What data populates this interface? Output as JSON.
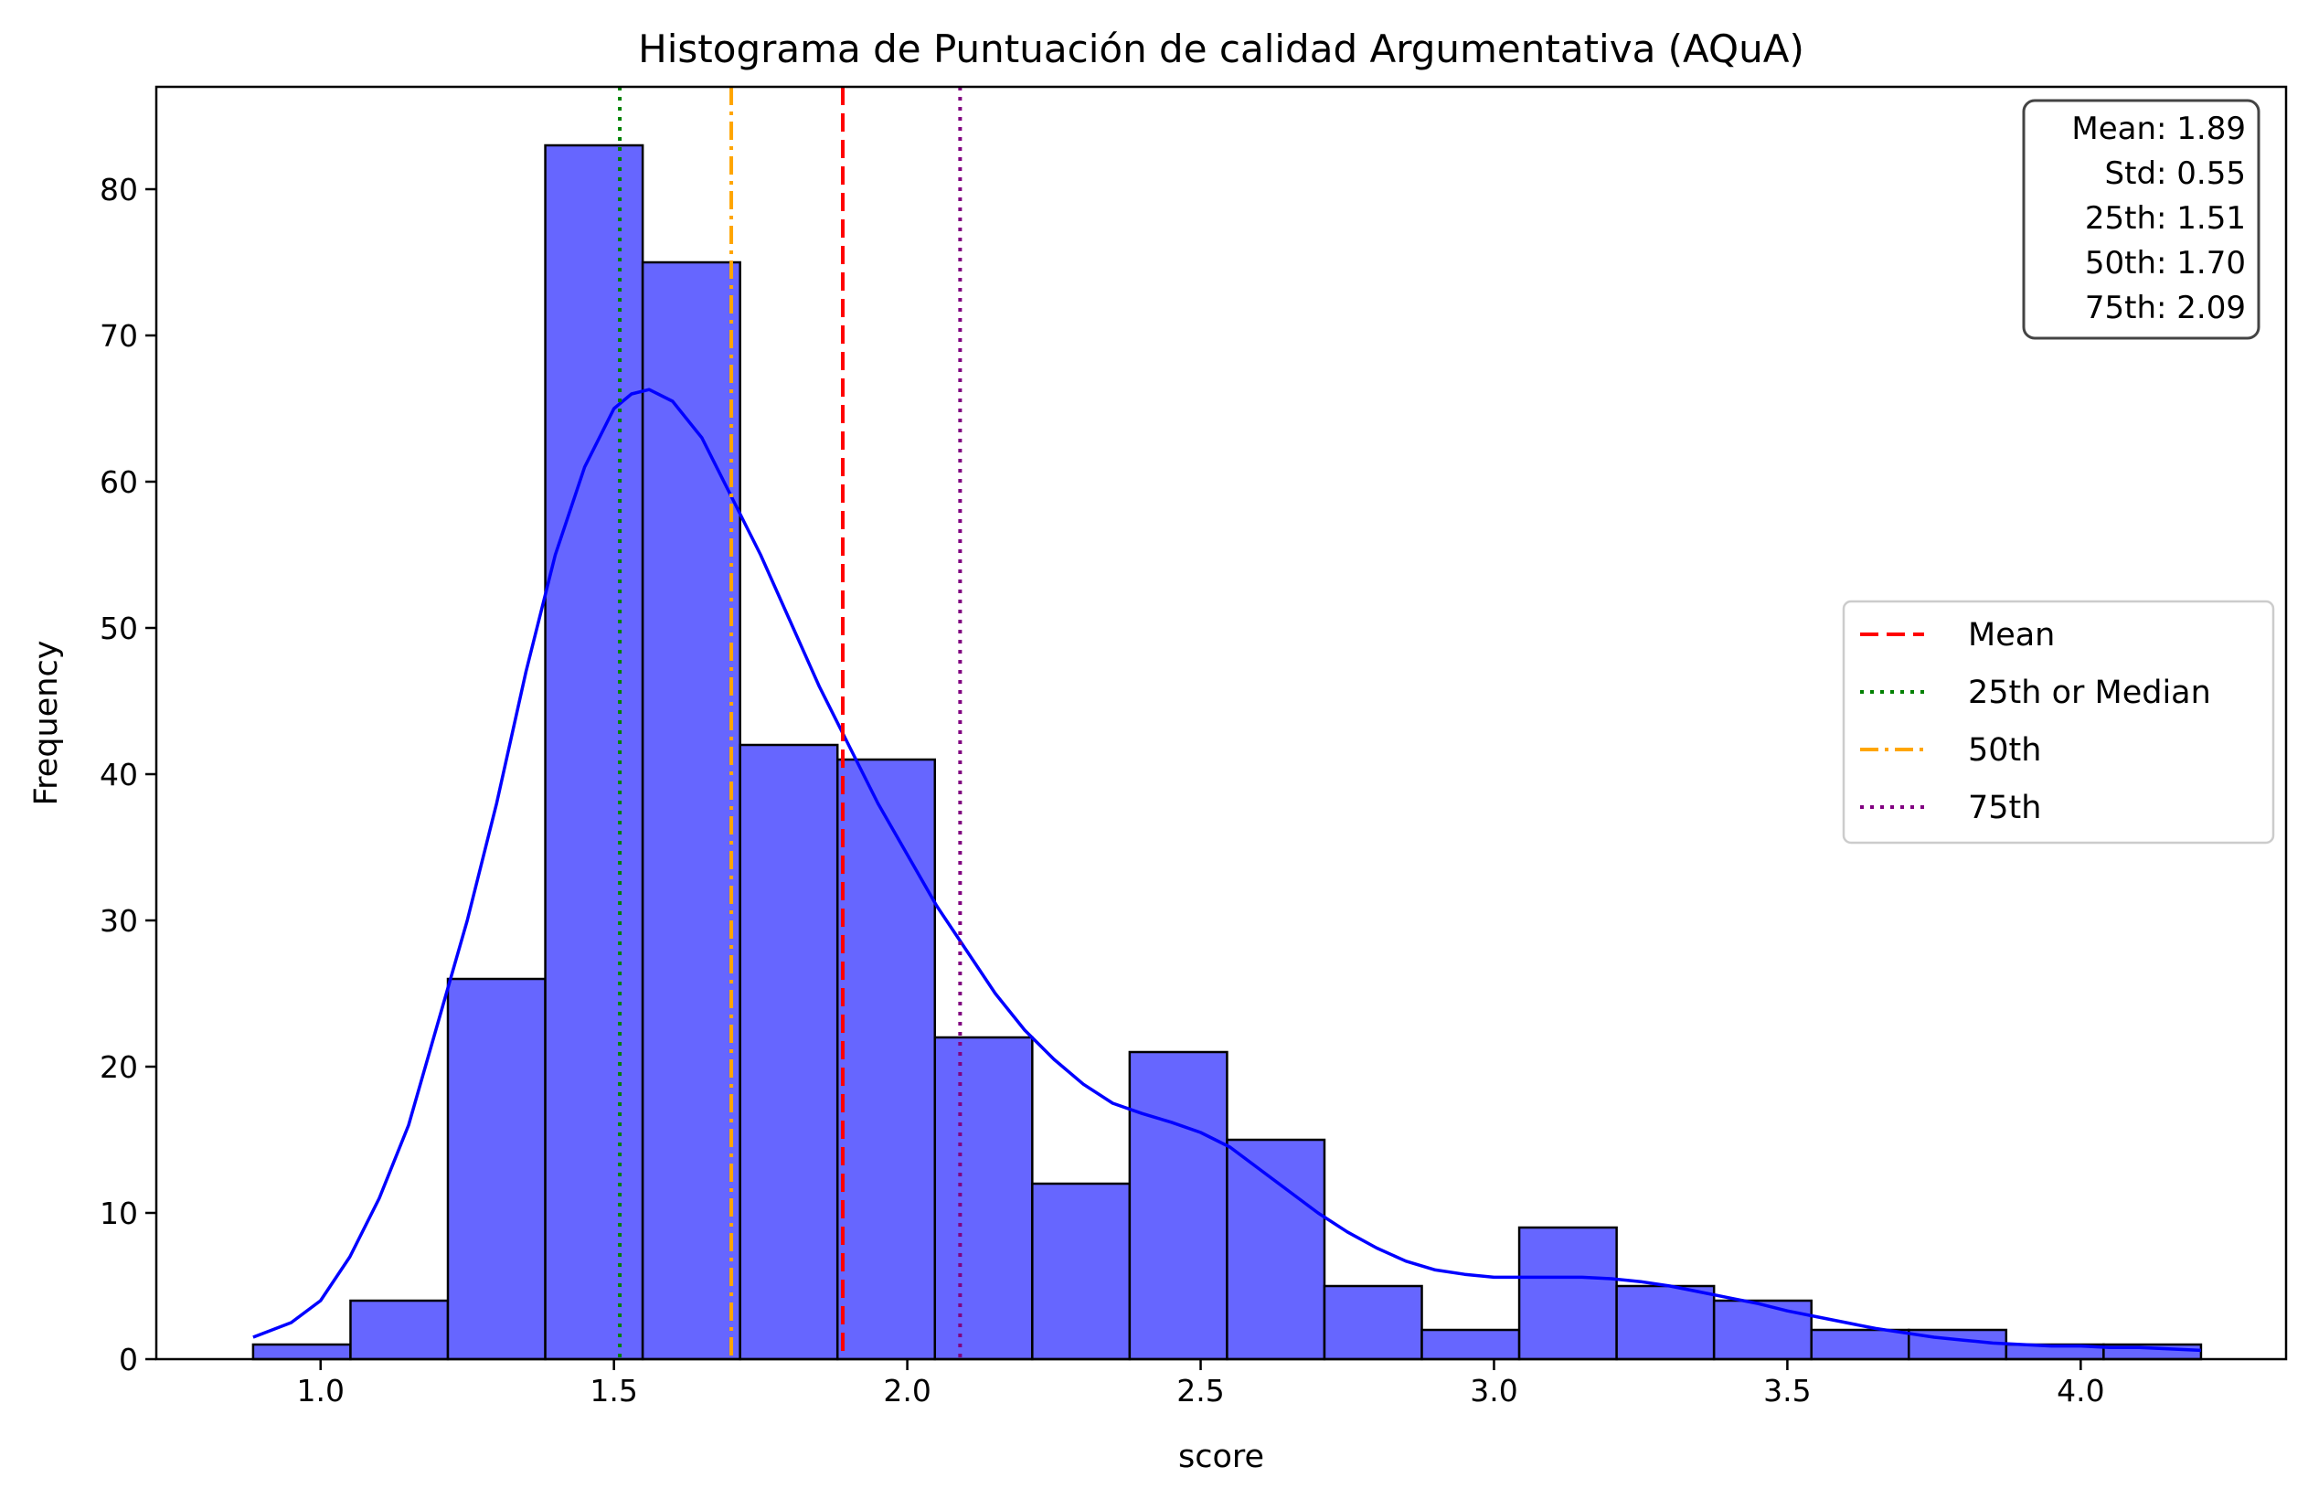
{
  "chart_data": {
    "type": "bar",
    "title": "Histograma de Puntuación de calidad Argumentativa (AQuA)",
    "xlabel": "score",
    "ylabel": "Frequency",
    "xlim": [
      0.72,
      4.35
    ],
    "ylim": [
      0,
      87
    ],
    "x_ticks": [
      1.0,
      1.5,
      2.0,
      2.5,
      3.0,
      3.5,
      4.0
    ],
    "x_tick_labels": [
      "1.0",
      "1.5",
      "2.0",
      "2.5",
      "3.0",
      "3.5",
      "4.0"
    ],
    "y_ticks": [
      0,
      10,
      20,
      30,
      40,
      50,
      60,
      70,
      80
    ],
    "y_tick_labels": [
      "0",
      "10",
      "20",
      "30",
      "40",
      "50",
      "60",
      "70",
      "80"
    ],
    "bar_color": "#6666ff",
    "bar_edge_color": "#000000",
    "bins": [
      {
        "start": 0.885,
        "end": 1.051,
        "count": 1
      },
      {
        "start": 1.051,
        "end": 1.217,
        "count": 4
      },
      {
        "start": 1.217,
        "end": 1.383,
        "count": 26
      },
      {
        "start": 1.383,
        "end": 1.549,
        "count": 83
      },
      {
        "start": 1.549,
        "end": 1.715,
        "count": 75
      },
      {
        "start": 1.715,
        "end": 1.881,
        "count": 42
      },
      {
        "start": 1.881,
        "end": 2.047,
        "count": 41
      },
      {
        "start": 2.047,
        "end": 2.213,
        "count": 22
      },
      {
        "start": 2.213,
        "end": 2.379,
        "count": 12
      },
      {
        "start": 2.379,
        "end": 2.545,
        "count": 21
      },
      {
        "start": 2.545,
        "end": 2.711,
        "count": 15
      },
      {
        "start": 2.711,
        "end": 2.877,
        "count": 5
      },
      {
        "start": 2.877,
        "end": 3.043,
        "count": 2
      },
      {
        "start": 3.043,
        "end": 3.209,
        "count": 9
      },
      {
        "start": 3.209,
        "end": 3.375,
        "count": 5
      },
      {
        "start": 3.375,
        "end": 3.541,
        "count": 4
      },
      {
        "start": 3.541,
        "end": 3.707,
        "count": 2
      },
      {
        "start": 3.707,
        "end": 3.873,
        "count": 2
      },
      {
        "start": 3.873,
        "end": 4.039,
        "count": 1
      },
      {
        "start": 4.039,
        "end": 4.205,
        "count": 1
      }
    ],
    "kde": {
      "color": "#0000ff",
      "x": [
        0.885,
        0.95,
        1.0,
        1.05,
        1.1,
        1.15,
        1.2,
        1.25,
        1.3,
        1.35,
        1.4,
        1.45,
        1.5,
        1.53,
        1.56,
        1.6,
        1.65,
        1.7,
        1.75,
        1.8,
        1.85,
        1.9,
        1.95,
        2.0,
        2.05,
        2.1,
        2.15,
        2.2,
        2.25,
        2.3,
        2.35,
        2.4,
        2.45,
        2.5,
        2.55,
        2.6,
        2.65,
        2.7,
        2.75,
        2.8,
        2.85,
        2.9,
        2.95,
        3.0,
        3.05,
        3.1,
        3.15,
        3.2,
        3.25,
        3.3,
        3.35,
        3.4,
        3.45,
        3.5,
        3.55,
        3.6,
        3.65,
        3.7,
        3.75,
        3.8,
        3.85,
        3.9,
        3.95,
        4.0,
        4.05,
        4.1,
        4.15,
        4.205
      ],
      "y": [
        1.5,
        2.5,
        4,
        7,
        11,
        16,
        23,
        30,
        38,
        47,
        55,
        61,
        65,
        66,
        66.3,
        65.5,
        63,
        59,
        55,
        50.5,
        46,
        42,
        38,
        34.5,
        31,
        28,
        25,
        22.5,
        20.5,
        18.8,
        17.5,
        16.8,
        16.2,
        15.5,
        14.5,
        13,
        11.5,
        10,
        8.7,
        7.6,
        6.7,
        6.1,
        5.8,
        5.6,
        5.6,
        5.6,
        5.6,
        5.5,
        5.3,
        5,
        4.6,
        4.2,
        3.8,
        3.3,
        2.9,
        2.5,
        2.1,
        1.8,
        1.5,
        1.3,
        1.1,
        1,
        0.9,
        0.9,
        0.8,
        0.8,
        0.7,
        0.6
      ]
    },
    "vlines": [
      {
        "name": "Mean",
        "x": 1.89,
        "color": "#ff0000",
        "style": "dashed"
      },
      {
        "name": "25th or Median",
        "x": 1.51,
        "color": "#008000",
        "style": "dotted"
      },
      {
        "name": "50th",
        "x": 1.7,
        "color": "#ffa500",
        "style": "dashdot"
      },
      {
        "name": "75th",
        "x": 2.09,
        "color": "#800080",
        "style": "dotted"
      }
    ],
    "stats_box": [
      "Mean: 1.89",
      "Std: 0.55",
      "25th: 1.51",
      "50th: 1.70",
      "75th: 2.09"
    ],
    "legend_position": "center-right",
    "grid": false
  }
}
